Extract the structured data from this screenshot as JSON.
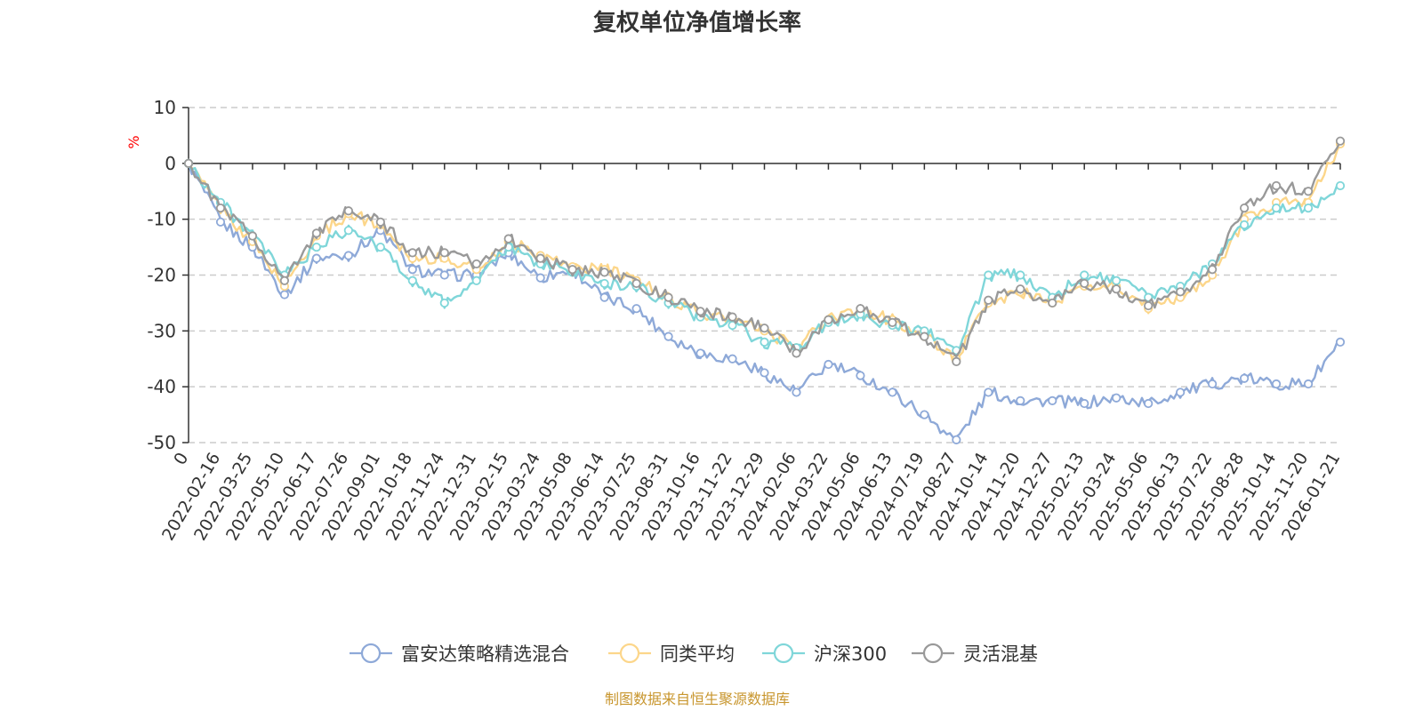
{
  "chart_data": {
    "type": "line",
    "title": "复权单位净值增长率",
    "ylabel": "%",
    "ylim": [
      -50,
      10
    ],
    "yticks": [
      10,
      0,
      -10,
      -20,
      -30,
      -40,
      -50
    ],
    "grid": true,
    "legend_position": "bottom",
    "source": "制图数据来自恒生聚源数据库",
    "x": [
      "0",
      "2022-02-16",
      "2022-03-25",
      "2022-05-10",
      "2022-06-17",
      "2022-07-26",
      "2022-09-01",
      "2022-10-18",
      "2022-11-24",
      "2022-12-31",
      "2023-02-15",
      "2023-03-24",
      "2023-05-08",
      "2023-06-14",
      "2023-07-25",
      "2023-08-31",
      "2023-10-16",
      "2023-11-22",
      "2023-12-29",
      "2024-02-06",
      "2024-03-22",
      "2024-05-06",
      "2024-06-13",
      "2024-07-19",
      "2024-08-27",
      "2024-10-14",
      "2024-11-20",
      "2024-12-27",
      "2025-02-13",
      "2025-03-24",
      "2025-05-06",
      "2025-06-13",
      "2025-07-22",
      "2025-08-28",
      "2025-10-14",
      "2025-11-20",
      "2026-01-21"
    ],
    "series": [
      {
        "name": "富安达策略精选混合",
        "color": "#8ea9d8",
        "values": [
          0,
          -10.5,
          -15,
          -23.5,
          -17,
          -16.5,
          -12,
          -19,
          -20,
          -20,
          -16,
          -20.5,
          -19,
          -24,
          -26,
          -31,
          -34,
          -35,
          -37.5,
          -41,
          -36,
          -38,
          -41,
          -45,
          -49.5,
          -41,
          -42.5,
          -42.5,
          -43,
          -42,
          -43,
          -41,
          -39.5,
          -38.5,
          -39.5,
          -39.5,
          -32
        ]
      },
      {
        "name": "同类平均",
        "color": "#fcd68a",
        "values": [
          0,
          -8,
          -14,
          -22,
          -13,
          -9,
          -11,
          -17,
          -17,
          -19,
          -14,
          -16.5,
          -18.5,
          -19,
          -21,
          -24,
          -27,
          -28,
          -30,
          -33,
          -28,
          -26.5,
          -28,
          -31,
          -35,
          -25,
          -23,
          -25,
          -22,
          -22,
          -26,
          -24,
          -20,
          -10,
          -7,
          -7,
          3.5
        ]
      },
      {
        "name": "沪深300",
        "color": "#7fd6d9",
        "values": [
          0,
          -7,
          -13,
          -20,
          -15,
          -12,
          -15,
          -21,
          -25,
          -21,
          -15,
          -18,
          -19.5,
          -21.5,
          -22,
          -25,
          -27.5,
          -29,
          -32,
          -33,
          -28.5,
          -27,
          -29,
          -30,
          -33.5,
          -20,
          -20,
          -24,
          -20,
          -21,
          -24,
          -22,
          -18,
          -11,
          -8,
          -8,
          -4
        ]
      },
      {
        "name": "灵活混基",
        "color": "#999999",
        "values": [
          0,
          -8,
          -13,
          -21,
          -12.5,
          -8.5,
          -10.5,
          -16,
          -16,
          -18,
          -13.5,
          -17,
          -19,
          -19.5,
          -21.5,
          -24,
          -26.5,
          -27.5,
          -29.5,
          -34,
          -28,
          -26,
          -28.5,
          -31,
          -35.5,
          -24.5,
          -22.5,
          -25,
          -21.5,
          -22.5,
          -25.5,
          -23,
          -19,
          -8,
          -4,
          -5,
          4
        ]
      }
    ]
  }
}
